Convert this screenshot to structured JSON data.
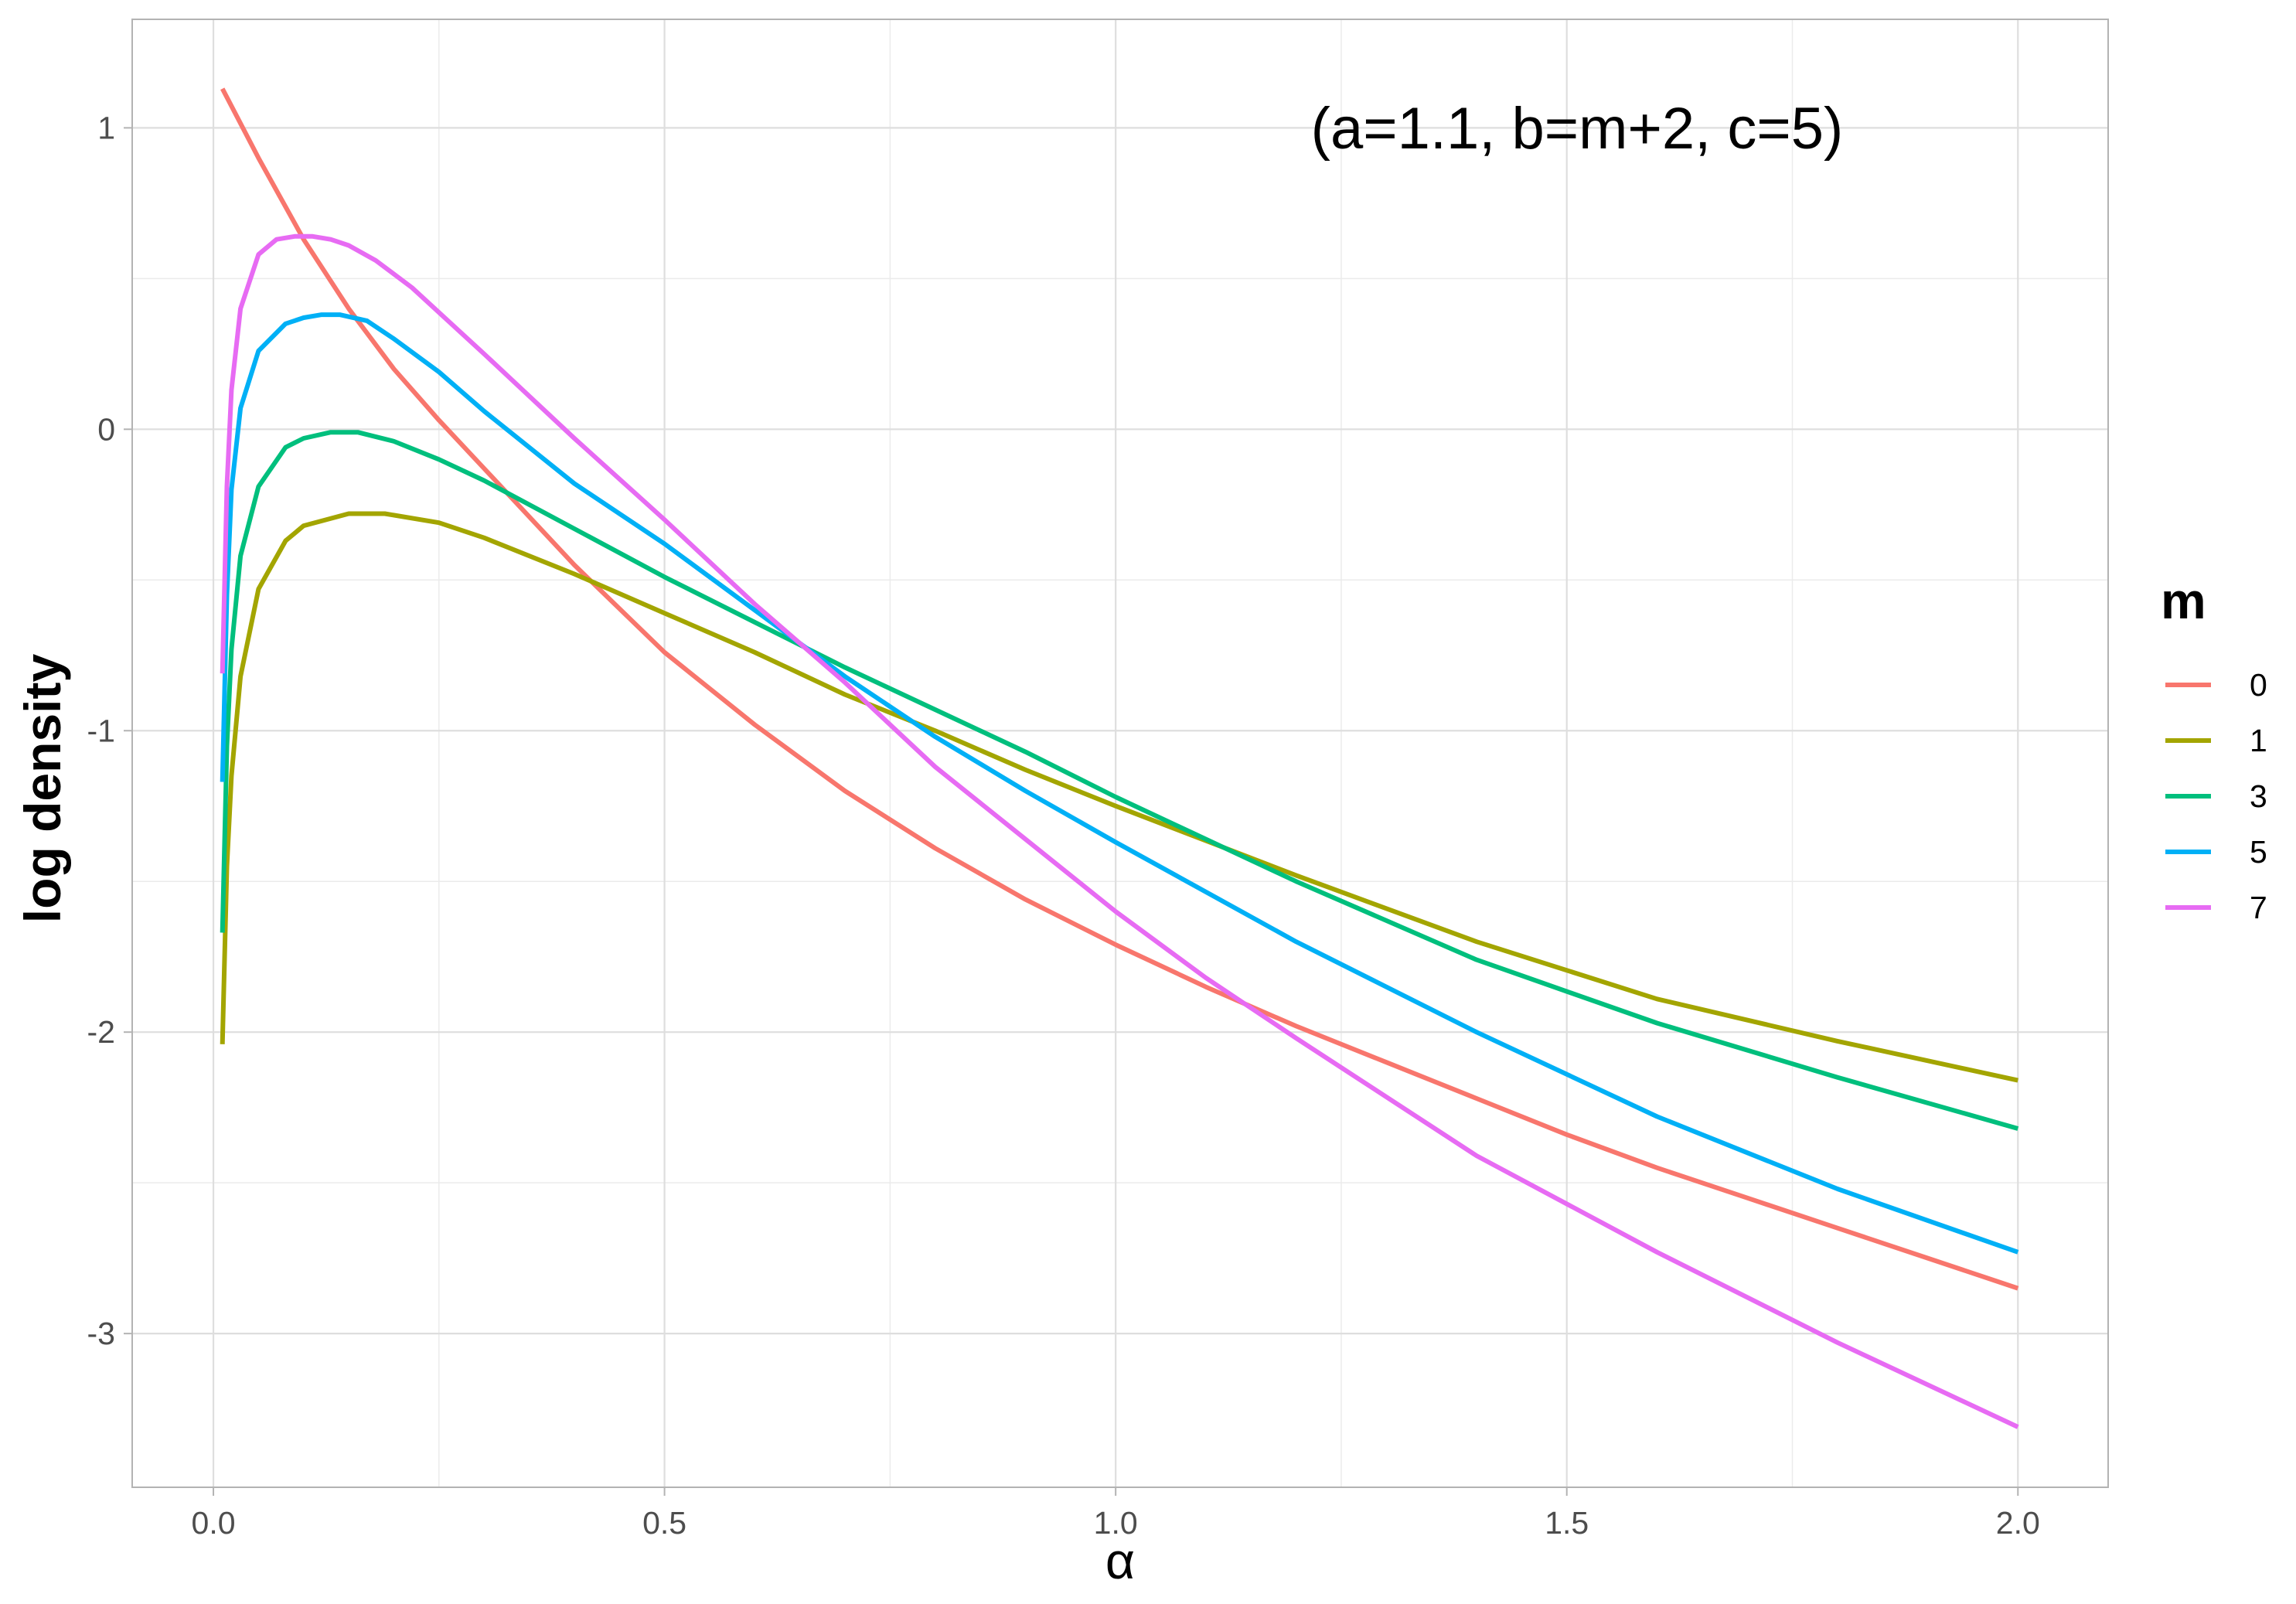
{
  "chart_data": {
    "type": "line",
    "annotation": "(a=1.1, b=m+2, c=5)",
    "xlabel": "α",
    "ylabel": "log density",
    "xlim": [
      -0.09,
      2.1
    ],
    "ylim": [
      -3.51,
      1.36
    ],
    "x_ticks": [
      0.0,
      0.5,
      1.0,
      1.5,
      2.0
    ],
    "x_tick_labels": [
      "0.0",
      "0.5",
      "1.0",
      "1.5",
      "2.0"
    ],
    "y_ticks": [
      -3,
      -2,
      -1,
      0,
      1
    ],
    "y_tick_labels": [
      "-3",
      "-2",
      "-1",
      "0",
      "1"
    ],
    "grid": true,
    "legend": {
      "title": "m",
      "position": "right"
    },
    "series": [
      {
        "name": "0",
        "color": "#F8766D",
        "x": [
          0.01,
          0.05,
          0.1,
          0.15,
          0.2,
          0.25,
          0.3,
          0.4,
          0.5,
          0.6,
          0.7,
          0.8,
          0.9,
          1.0,
          1.1,
          1.2,
          1.3,
          1.4,
          1.5,
          1.6,
          1.7,
          1.8,
          1.9,
          2.0
        ],
        "y": [
          1.13,
          0.9,
          0.63,
          0.4,
          0.2,
          0.03,
          -0.13,
          -0.45,
          -0.74,
          -0.98,
          -1.2,
          -1.39,
          -1.56,
          -1.71,
          -1.85,
          -1.98,
          -2.1,
          -2.22,
          -2.34,
          -2.45,
          -2.55,
          -2.65,
          -2.75,
          -2.85
        ]
      },
      {
        "name": "1",
        "color": "#A3A500",
        "x": [
          0.01,
          0.015,
          0.02,
          0.03,
          0.05,
          0.08,
          0.1,
          0.15,
          0.19,
          0.25,
          0.3,
          0.4,
          0.5,
          0.6,
          0.7,
          0.8,
          0.9,
          1.0,
          1.2,
          1.4,
          1.6,
          1.8,
          2.0
        ],
        "y": [
          -2.04,
          -1.45,
          -1.15,
          -0.82,
          -0.53,
          -0.37,
          -0.32,
          -0.28,
          -0.28,
          -0.31,
          -0.36,
          -0.48,
          -0.61,
          -0.74,
          -0.88,
          -1.0,
          -1.13,
          -1.25,
          -1.48,
          -1.7,
          -1.89,
          -2.03,
          -2.16
        ]
      },
      {
        "name": "3",
        "color": "#00BF7D",
        "x": [
          0.01,
          0.015,
          0.02,
          0.03,
          0.05,
          0.08,
          0.1,
          0.13,
          0.16,
          0.2,
          0.25,
          0.3,
          0.4,
          0.5,
          0.6,
          0.7,
          0.8,
          0.9,
          1.0,
          1.2,
          1.4,
          1.6,
          1.8,
          2.0
        ],
        "y": [
          -1.67,
          -1.05,
          -0.73,
          -0.42,
          -0.19,
          -0.06,
          -0.03,
          -0.01,
          -0.01,
          -0.04,
          -0.1,
          -0.17,
          -0.33,
          -0.49,
          -0.64,
          -0.79,
          -0.93,
          -1.07,
          -1.22,
          -1.5,
          -1.76,
          -1.97,
          -2.15,
          -2.32
        ]
      },
      {
        "name": "5",
        "color": "#00B0F6",
        "x": [
          0.01,
          0.015,
          0.02,
          0.03,
          0.05,
          0.08,
          0.1,
          0.12,
          0.14,
          0.17,
          0.2,
          0.25,
          0.3,
          0.4,
          0.5,
          0.6,
          0.7,
          0.8,
          0.9,
          1.0,
          1.2,
          1.4,
          1.6,
          1.8,
          2.0
        ],
        "y": [
          -1.17,
          -0.55,
          -0.2,
          0.07,
          0.26,
          0.35,
          0.37,
          0.38,
          0.38,
          0.36,
          0.3,
          0.19,
          0.06,
          -0.18,
          -0.38,
          -0.6,
          -0.82,
          -1.02,
          -1.2,
          -1.37,
          -1.7,
          -2.0,
          -2.28,
          -2.52,
          -2.73
        ]
      },
      {
        "name": "7",
        "color": "#E76BF3",
        "x": [
          0.01,
          0.015,
          0.02,
          0.03,
          0.05,
          0.07,
          0.09,
          0.11,
          0.13,
          0.15,
          0.18,
          0.22,
          0.26,
          0.3,
          0.4,
          0.5,
          0.6,
          0.7,
          0.8,
          0.9,
          1.0,
          1.1,
          1.2,
          1.4,
          1.6,
          1.8,
          2.0
        ],
        "y": [
          -0.81,
          -0.19,
          0.13,
          0.4,
          0.58,
          0.63,
          0.64,
          0.64,
          0.63,
          0.61,
          0.56,
          0.47,
          0.36,
          0.25,
          -0.03,
          -0.3,
          -0.58,
          -0.84,
          -1.12,
          -1.36,
          -1.6,
          -1.82,
          -2.02,
          -2.41,
          -2.73,
          -3.03,
          -3.31
        ]
      }
    ]
  }
}
